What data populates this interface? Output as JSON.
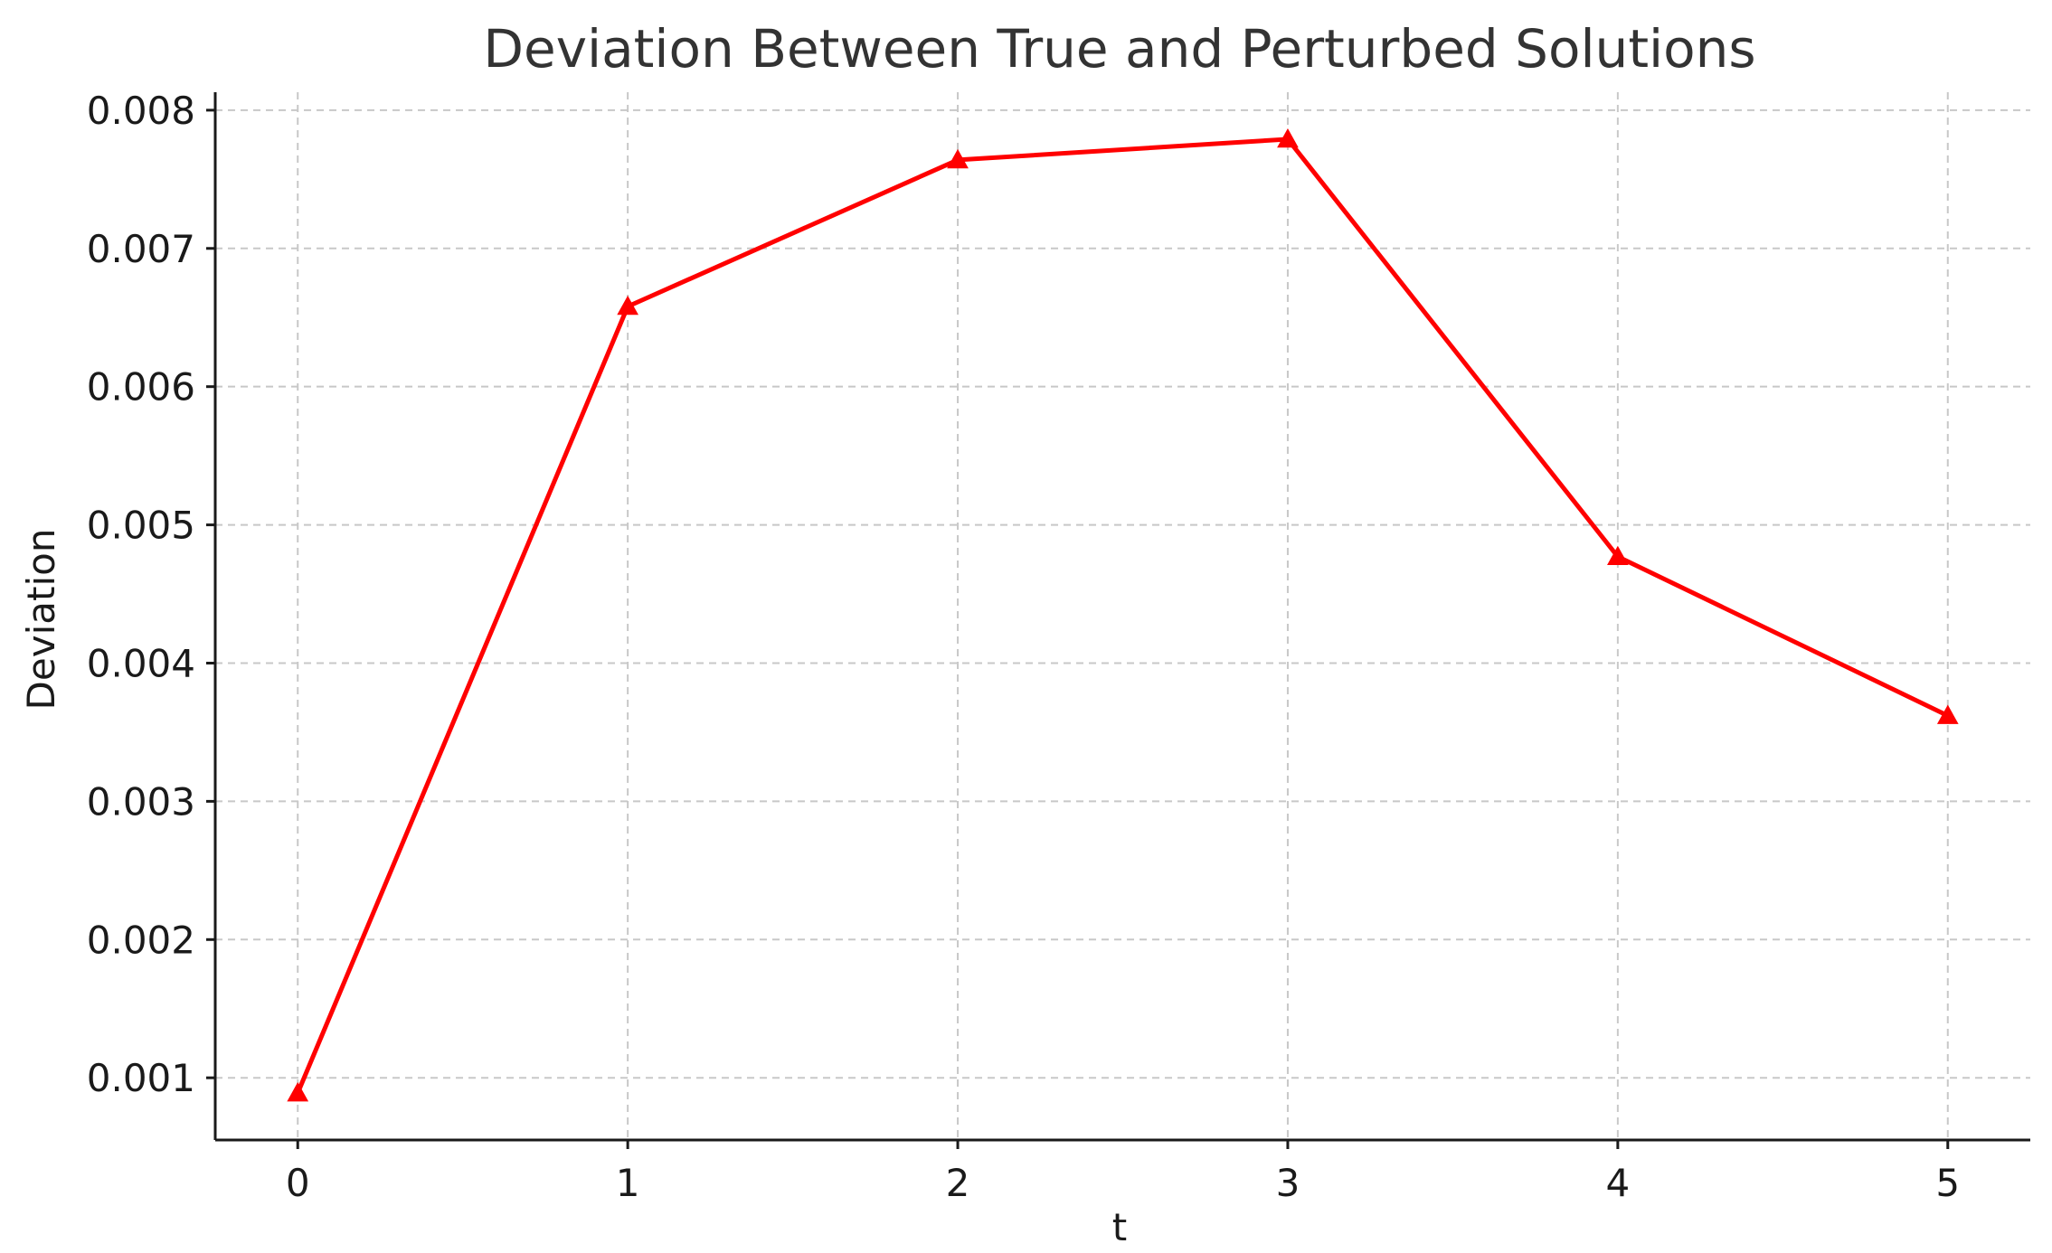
{
  "chart_data": {
    "type": "line",
    "title": "Deviation Between True and Perturbed Solutions",
    "xlabel": "t",
    "ylabel": "Deviation",
    "x": [
      0,
      1,
      2,
      3,
      4,
      5
    ],
    "series": [
      {
        "values": [
          0.00089,
          0.00658,
          0.00764,
          0.00779,
          0.00477,
          0.00362
        ],
        "color": "#ff0000",
        "marker": "triangle-up"
      }
    ],
    "xlim": [
      -0.25,
      5.25
    ],
    "ylim": [
      0.00055,
      0.00813
    ],
    "xticks": [
      0,
      1,
      2,
      3,
      4,
      5
    ],
    "xtick_labels": [
      "0",
      "1",
      "2",
      "3",
      "4",
      "5"
    ],
    "yticks": [
      0.001,
      0.002,
      0.003,
      0.004,
      0.005,
      0.006,
      0.007,
      0.008
    ],
    "ytick_labels": [
      "0.001",
      "0.002",
      "0.003",
      "0.004",
      "0.005",
      "0.006",
      "0.007",
      "0.008"
    ],
    "grid": true,
    "grid_style": "dashed"
  }
}
